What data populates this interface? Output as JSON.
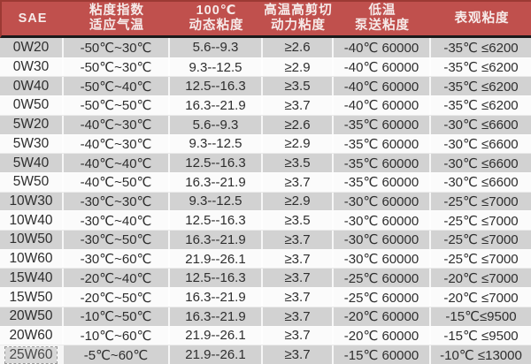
{
  "colors": {
    "header_bg": "#c0504d",
    "header_border": "#9c3a34",
    "header_text": "#f6eae9",
    "divider": "#1a1a1a",
    "row_odd": "#d2d2d2",
    "row_even": "#fbfbfb",
    "body_text": "#2e2e2e",
    "selection_bg": "#d7d7d7",
    "selection_border": "#979797"
  },
  "selection": {
    "row_index": 16,
    "col_index": 0
  },
  "chart_data": {
    "type": "table",
    "columns": [
      "SAE",
      "粘度指数 适应气温",
      "100℃ 动态粘度",
      "高温高剪切 动力粘度",
      "低温 泵送粘度",
      "表观粘度"
    ],
    "header_lines": [
      [
        "SAE"
      ],
      [
        "粘度指数",
        "适应气温"
      ],
      [
        "100℃",
        "动态粘度"
      ],
      [
        "高温高剪切",
        "动力粘度"
      ],
      [
        "低温",
        "泵送粘度"
      ],
      [
        "表观粘度"
      ]
    ],
    "rows": [
      [
        "0W20",
        "-50℃~30℃",
        "5.6--9.3",
        "≥2.6",
        "-40℃ 60000",
        "-35℃ ≤6200"
      ],
      [
        "0W30",
        "-50℃~30℃",
        "9.3--12.5",
        "≥2.9",
        "-40℃ 60000",
        "-35℃ ≤6200"
      ],
      [
        "0W40",
        "-50℃~40℃",
        "12.5--16.3",
        "≥3.5",
        "-40℃ 60000",
        "-35℃ ≤6200"
      ],
      [
        "0W50",
        "-50℃~50℃",
        "16.3--21.9",
        "≥3.7",
        "-40℃ 60000",
        "-35℃ ≤6200"
      ],
      [
        "5W20",
        "-40℃~30℃",
        "5.6--9.3",
        "≥2.6",
        "-35℃ 60000",
        "-30℃ ≤6600"
      ],
      [
        "5W30",
        "-40℃~30℃",
        "9.3--12.5",
        "≥2.9",
        "-35℃ 60000",
        "-30℃ ≤6600"
      ],
      [
        "5W40",
        "-40℃~40℃",
        "12.5--16.3",
        "≥3.5",
        "-35℃ 60000",
        "-30℃ ≤6600"
      ],
      [
        "5W50",
        "-40℃~50℃",
        "16.3--21.9",
        "≥3.7",
        "-35℃ 60000",
        "-30℃ ≤6600"
      ],
      [
        "10W30",
        "-30℃~30℃",
        "9.3--12.5",
        "≥2.9",
        "-30℃ 60000",
        "-25℃ ≤7000"
      ],
      [
        "10W40",
        "-30℃~40℃",
        "12.5--16.3",
        "≥3.5",
        "-30℃ 60000",
        "-25℃ ≤7000"
      ],
      [
        "10W50",
        "-30℃~50℃",
        "16.3--21.9",
        "≥3.7",
        "-30℃ 60000",
        "-25℃ ≤7000"
      ],
      [
        "10W60",
        "-30℃~60℃",
        "21.9--26.1",
        "≥3.7",
        "-30℃ 60000",
        "-25℃ ≤7000"
      ],
      [
        "15W40",
        "-20℃~40℃",
        "12.5--16.3",
        "≥3.7",
        "-25℃ 60000",
        "-20℃ ≤7000"
      ],
      [
        "15W50",
        "-20℃~50℃",
        "16.3--21.9",
        "≥3.7",
        "-25℃ 60000",
        "-20℃ ≤7000"
      ],
      [
        "20W50",
        "-10℃~50℃",
        "16.3--21.9",
        "≥3.7",
        "-20℃ 60000",
        "-15℃≤9500"
      ],
      [
        "20W60",
        "-10℃~60℃",
        "21.9--26.1",
        "≥3.7",
        "-20℃ 60000",
        "-15℃ ≤9500"
      ],
      [
        "25W60",
        "-5℃~60℃",
        "21.9--26.1",
        "≥3.7",
        "-15℃ 60000",
        "-10℃ ≤13000"
      ]
    ]
  }
}
